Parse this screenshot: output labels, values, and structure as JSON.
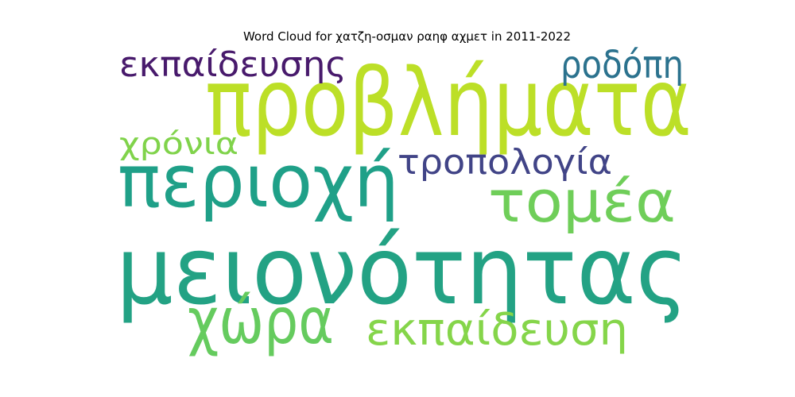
{
  "chart_data": {
    "type": "wordcloud",
    "title": "Word Cloud for χατζη-οσμαν ραηφ αχμετ in 2011-2022",
    "words": [
      {
        "text": "μειονότητας",
        "color": "#23a284"
      },
      {
        "text": "προβλήματα",
        "color": "#bcdf27"
      },
      {
        "text": "περιοχή",
        "color": "#1fa088"
      },
      {
        "text": "τομέα",
        "color": "#6fce59"
      },
      {
        "text": "χώρα",
        "color": "#65cb5e"
      },
      {
        "text": "εκπαίδευση",
        "color": "#85d54a"
      },
      {
        "text": "εκπαίδευσης",
        "color": "#481a6c"
      },
      {
        "text": "ροδόπη",
        "color": "#2b728e"
      },
      {
        "text": "τροπολογία",
        "color": "#414487"
      },
      {
        "text": "χρόνια",
        "color": "#80d34b"
      }
    ]
  }
}
